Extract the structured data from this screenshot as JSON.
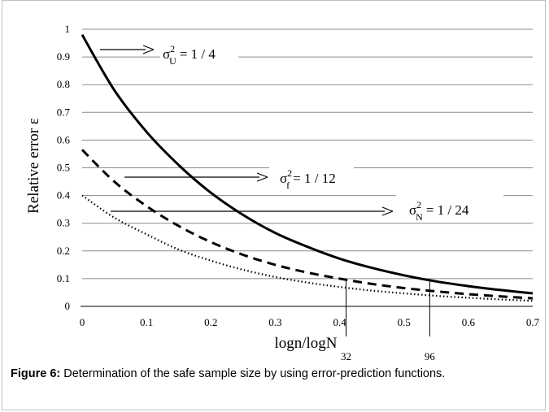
{
  "chart_data": {
    "type": "line",
    "xlabel": "logn/logN",
    "ylabel": "Relative error ε",
    "xlim": [
      0,
      0.7
    ],
    "ylim": [
      0,
      1
    ],
    "x_ticks": [
      "0",
      "0.1",
      "0.2",
      "0.3",
      "0.4",
      "0.5",
      "0.6",
      "0.7"
    ],
    "y_ticks": [
      "0",
      "0.1",
      "0.2",
      "0.3",
      "0.4",
      "0.5",
      "0.6",
      "0.7",
      "0.8",
      "0.9",
      "1"
    ],
    "grid": "horizontal",
    "x": [
      0,
      0.05,
      0.1,
      0.15,
      0.2,
      0.25,
      0.3,
      0.35,
      0.4,
      0.45,
      0.5,
      0.55,
      0.6,
      0.65,
      0.7
    ],
    "series": [
      {
        "style": "solid",
        "values": [
          0.98,
          0.78,
          0.63,
          0.51,
          0.41,
          0.33,
          0.265,
          0.215,
          0.172,
          0.139,
          0.112,
          0.09,
          0.073,
          0.059,
          0.047
        ]
      },
      {
        "style": "dashed",
        "values": [
          0.565,
          0.45,
          0.362,
          0.29,
          0.232,
          0.186,
          0.15,
          0.122,
          0.1,
          0.081,
          0.066,
          0.054,
          0.044,
          0.036,
          0.029
        ]
      },
      {
        "style": "dotted",
        "values": [
          0.4,
          0.32,
          0.26,
          0.205,
          0.165,
          0.132,
          0.106,
          0.086,
          0.07,
          0.057,
          0.047,
          0.038,
          0.031,
          0.025,
          0.02
        ]
      }
    ],
    "annotations": [
      {
        "sym": "σ",
        "sup": "2",
        "sub": "U",
        "rhs": "= 1 / 4"
      },
      {
        "sym": "σ",
        "sup": "2",
        "sub": "f",
        "rhs": "= 1 / 12"
      },
      {
        "sym": "σ",
        "sup": "2",
        "sub": "N",
        "rhs": "= 1 / 24"
      }
    ],
    "markers": [
      {
        "x": 0.41,
        "label": "32"
      },
      {
        "x": 0.54,
        "label": "96"
      }
    ]
  },
  "caption": {
    "label": "Figure 6:",
    "text": " Determination of the safe sample size by using error-prediction functions."
  }
}
